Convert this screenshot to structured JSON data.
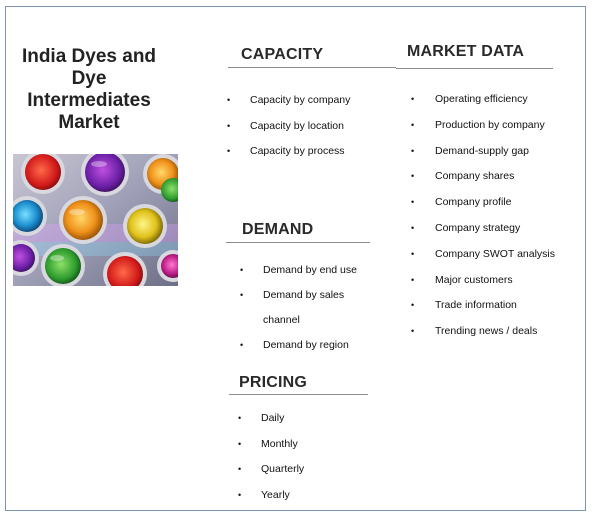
{
  "title_lines": [
    "India Dyes and",
    "Dye",
    "Intermediates",
    "Market"
  ],
  "photo": {
    "description_icon": "dye-cans-photo"
  },
  "capacity": {
    "heading": "CAPACITY",
    "items": [
      "Capacity by company",
      "Capacity by location",
      "Capacity by process"
    ]
  },
  "demand": {
    "heading": "DEMAND",
    "items": [
      "Demand by end use",
      "Demand by sales",
      "channel",
      "Demand by region"
    ]
  },
  "pricing": {
    "heading": "PRICING",
    "items": [
      "Daily",
      "Monthly",
      "Quarterly",
      "Yearly"
    ]
  },
  "market_data": {
    "heading": "MARKET DATA",
    "items": [
      "Operating efficiency",
      "Production by company",
      "Demand-supply gap",
      "Company shares",
      "Company profile",
      "Company strategy",
      "Company SWOT analysis",
      "Major customers",
      "Trade information",
      "Trending news / deals"
    ]
  },
  "bullet_char": "•"
}
